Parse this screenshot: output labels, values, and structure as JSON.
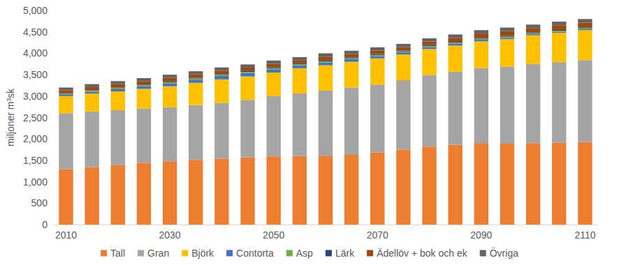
{
  "chart_data": {
    "type": "bar",
    "stacked": true,
    "y_label": "miljoner m³sk",
    "categories": [
      2010,
      null,
      null,
      null,
      2030,
      null,
      null,
      null,
      2050,
      null,
      null,
      null,
      2070,
      null,
      null,
      null,
      2090,
      null,
      null,
      null,
      2110
    ],
    "ylim": [
      0,
      5000
    ],
    "yticks": [
      0,
      500,
      1000,
      1500,
      2000,
      2500,
      3000,
      3500,
      4000,
      4500,
      5000
    ],
    "grid": false,
    "legend": "bottom",
    "series": [
      {
        "name": "Tall",
        "color": "#ED7D31",
        "values": [
          1290,
          1340,
          1390,
          1440,
          1480,
          1510,
          1540,
          1570,
          1590,
          1600,
          1610,
          1630,
          1680,
          1750,
          1820,
          1860,
          1890,
          1890,
          1900,
          1910,
          1930
        ]
      },
      {
        "name": "Gran",
        "color": "#A5A5A5",
        "values": [
          1310,
          1300,
          1280,
          1270,
          1260,
          1280,
          1300,
          1340,
          1410,
          1460,
          1520,
          1570,
          1590,
          1620,
          1670,
          1710,
          1760,
          1800,
          1850,
          1880,
          1910
        ]
      },
      {
        "name": "Björk",
        "color": "#FFC000",
        "values": [
          400,
          420,
          440,
          460,
          490,
          520,
          550,
          550,
          550,
          590,
          590,
          600,
          610,
          600,
          610,
          610,
          630,
          640,
          670,
          690,
          700
        ]
      },
      {
        "name": "Contorta",
        "color": "#4472C4",
        "values": [
          30,
          40,
          50,
          60,
          70,
          75,
          80,
          80,
          75,
          70,
          65,
          60,
          55,
          50,
          45,
          40,
          35,
          30,
          25,
          20,
          20
        ]
      },
      {
        "name": "Asp",
        "color": "#70AD47",
        "values": [
          25,
          25,
          25,
          25,
          25,
          25,
          25,
          25,
          25,
          25,
          25,
          25,
          25,
          25,
          25,
          25,
          25,
          25,
          25,
          25,
          25
        ]
      },
      {
        "name": "Lärk",
        "color": "#264478",
        "values": [
          10,
          10,
          12,
          14,
          15,
          16,
          18,
          20,
          20,
          20,
          20,
          20,
          20,
          20,
          20,
          20,
          20,
          20,
          20,
          20,
          20
        ]
      },
      {
        "name": "Ädellöv + bok och ek",
        "color": "#9E480E",
        "values": [
          70,
          75,
          80,
          80,
          85,
          80,
          82,
          80,
          85,
          75,
          90,
          80,
          85,
          80,
          85,
          95,
          100,
          110,
          100,
          110,
          110
        ]
      },
      {
        "name": "Övriga",
        "color": "#636363",
        "values": [
          65,
          70,
          73,
          71,
          75,
          74,
          75,
          75,
          75,
          70,
          80,
          75,
          75,
          75,
          75,
          80,
          80,
          85,
          80,
          85,
          85
        ]
      }
    ]
  }
}
